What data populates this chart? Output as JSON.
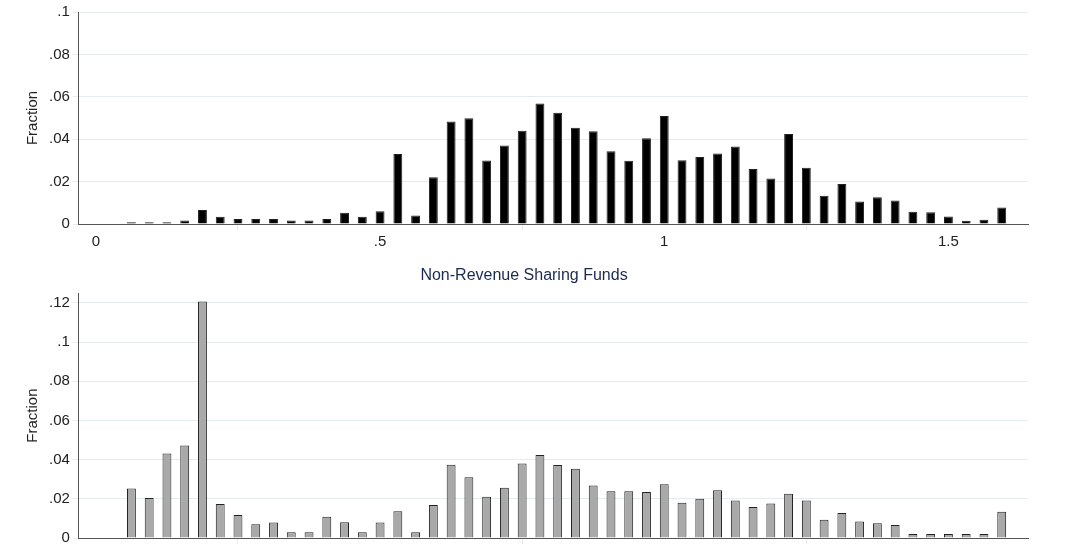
{
  "chart_data": [
    {
      "type": "histogram",
      "ylabel": "Fraction",
      "color": "#000000",
      "grid": "y",
      "tick_labels": true,
      "bins": [
        0.046875,
        0.078125,
        0.109375,
        0.140625,
        0.171875,
        0.203125,
        0.234375,
        0.265625,
        0.296875,
        0.328125,
        0.359375,
        0.390625,
        0.421875,
        0.453125,
        0.484375,
        0.515625,
        0.546875,
        0.578125,
        0.609375,
        0.640625,
        0.671875,
        0.703125,
        0.734375,
        0.765625,
        0.796875,
        0.828125,
        0.859375,
        0.890625,
        0.921875,
        0.953125,
        0.984375,
        1.015625,
        1.046875,
        1.078125,
        1.109375,
        1.140625,
        1.171875,
        1.203125,
        1.234375,
        1.265625,
        1.296875,
        1.328125,
        1.359375,
        1.390625,
        1.421875,
        1.453125,
        1.484375,
        1.515625,
        1.546875,
        1.578125,
        1.609375
      ],
      "values": [
        0.0008,
        0.0008,
        0.0008,
        0.0016,
        0.0066,
        0.0034,
        0.0024,
        0.0023,
        0.0023,
        0.0016,
        0.0016,
        0.0023,
        0.0053,
        0.0034,
        0.006,
        0.033,
        0.004,
        0.022,
        0.0484,
        0.0499,
        0.03,
        0.037,
        0.044,
        0.0568,
        0.0525,
        0.0454,
        0.0437,
        0.0343,
        0.0298,
        0.0404,
        0.0509,
        0.0301,
        0.0316,
        0.0333,
        0.0366,
        0.026,
        0.0215,
        0.0424,
        0.0265,
        0.0133,
        0.0189,
        0.0106,
        0.0126,
        0.0111,
        0.0058,
        0.0055,
        0.0035,
        0.0015,
        0.002,
        0.0078
      ],
      "xlim": [
        -0.03,
        1.64
      ],
      "xticks": [
        0,
        {
          "value": 0.5,
          "label": ".5"
        },
        1,
        1.5
      ],
      "ylim": [
        0,
        0.1
      ],
      "yticks": [
        0,
        {
          "value": 0.02,
          "label": ".02"
        },
        {
          "value": 0.04,
          "label": ".04"
        },
        {
          "value": 0.06,
          "label": ".06"
        },
        {
          "value": 0.08,
          "label": ".08"
        },
        {
          "value": 0.1,
          "label": ".1"
        }
      ]
    },
    {
      "type": "histogram",
      "title": "Non-Revenue Sharing Funds",
      "ylabel": "Fraction",
      "color": "#a9a9a9",
      "grid": "y",
      "tick_labels": "y",
      "bins": [
        0.046875,
        0.078125,
        0.109375,
        0.140625,
        0.171875,
        0.203125,
        0.234375,
        0.265625,
        0.296875,
        0.328125,
        0.359375,
        0.390625,
        0.421875,
        0.453125,
        0.484375,
        0.515625,
        0.546875,
        0.578125,
        0.609375,
        0.640625,
        0.671875,
        0.703125,
        0.734375,
        0.765625,
        0.796875,
        0.828125,
        0.859375,
        0.890625,
        0.921875,
        0.953125,
        0.984375,
        1.015625,
        1.046875,
        1.078125,
        1.109375,
        1.140625,
        1.171875,
        1.203125,
        1.234375,
        1.265625,
        1.296875,
        1.328125,
        1.359375,
        1.390625,
        1.421875,
        1.453125,
        1.484375,
        1.515625,
        1.546875,
        1.578125,
        1.609375
      ],
      "values": [
        0.0253,
        0.0204,
        0.0431,
        0.0472,
        0.1207,
        0.0173,
        0.0118,
        0.007,
        0.0079,
        0.003,
        0.003,
        0.0108,
        0.0081,
        0.003,
        0.0079,
        0.0136,
        0.003,
        0.0168,
        0.0374,
        0.031,
        0.0211,
        0.0257,
        0.0381,
        0.0424,
        0.0373,
        0.0354,
        0.0268,
        0.0239,
        0.0239,
        0.0235,
        0.0275,
        0.018,
        0.02,
        0.0244,
        0.0191,
        0.0158,
        0.0176,
        0.0226,
        0.0191,
        0.0093,
        0.0128,
        0.0084,
        0.0075,
        0.0066,
        0.002,
        0.002,
        0.002,
        0.002,
        0.002,
        0.0134
      ],
      "xlim": [
        -0.03,
        1.64
      ],
      "xticks": [
        {
          "value": 0,
          "label": null
        },
        {
          "value": 0.5,
          "label": null
        },
        {
          "value": 1,
          "label": null
        },
        {
          "value": 1.5,
          "label": null
        }
      ],
      "ylim": [
        0,
        0.125
      ],
      "yticks": [
        0,
        {
          "value": 0.02,
          "label": ".02"
        },
        {
          "value": 0.04,
          "label": ".04"
        },
        {
          "value": 0.06,
          "label": ".06"
        },
        {
          "value": 0.08,
          "label": ".08"
        },
        {
          "value": 0.1,
          "label": ".1"
        },
        {
          "value": 0.12,
          "label": ".12"
        }
      ]
    }
  ]
}
